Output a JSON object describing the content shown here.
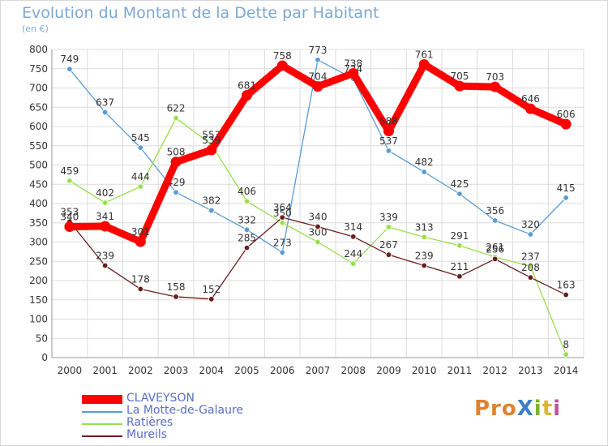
{
  "chart_data": {
    "type": "line",
    "title": "Evolution du Montant de la Dette par Habitant",
    "subtitle": "(en €)",
    "xlabel": "",
    "ylabel": "",
    "ylim": [
      0,
      800
    ],
    "ytick_step": 50,
    "grid": true,
    "legend_position": "bottom-left",
    "categories": [
      "2000",
      "2001",
      "2002",
      "2003",
      "2004",
      "2005",
      "2006",
      "2007",
      "2008",
      "2009",
      "2010",
      "2011",
      "2012",
      "2013",
      "2014"
    ],
    "series": [
      {
        "name": "CLAVEYSON",
        "color": "#ff0000",
        "line_style": "thick",
        "values": [
          340,
          341,
          301,
          508,
          539,
          681,
          758,
          704,
          738,
          588,
          761,
          705,
          703,
          646,
          606
        ]
      },
      {
        "name": "La Motte-de-Galaure",
        "color": "#5b9bd5",
        "line_style": "thin",
        "values": [
          749,
          637,
          545,
          429,
          382,
          332,
          273,
          773,
          724,
          537,
          482,
          425,
          356,
          320,
          415
        ]
      },
      {
        "name": "Ratières",
        "color": "#99e04c",
        "line_style": "thin",
        "values": [
          459,
          402,
          444,
          622,
          553,
          406,
          350,
          300,
          244,
          339,
          313,
          291,
          261,
          237,
          8
        ]
      },
      {
        "name": "Mureils",
        "color": "#6b1d1d",
        "line_style": "thin",
        "values": [
          353,
          239,
          178,
          158,
          152,
          285,
          364,
          340,
          314,
          267,
          239,
          211,
          256,
          208,
          163
        ]
      }
    ]
  },
  "logo": {
    "text": "ProXiti",
    "parts": [
      "Pro",
      "X",
      "i",
      "t",
      "i"
    ]
  }
}
